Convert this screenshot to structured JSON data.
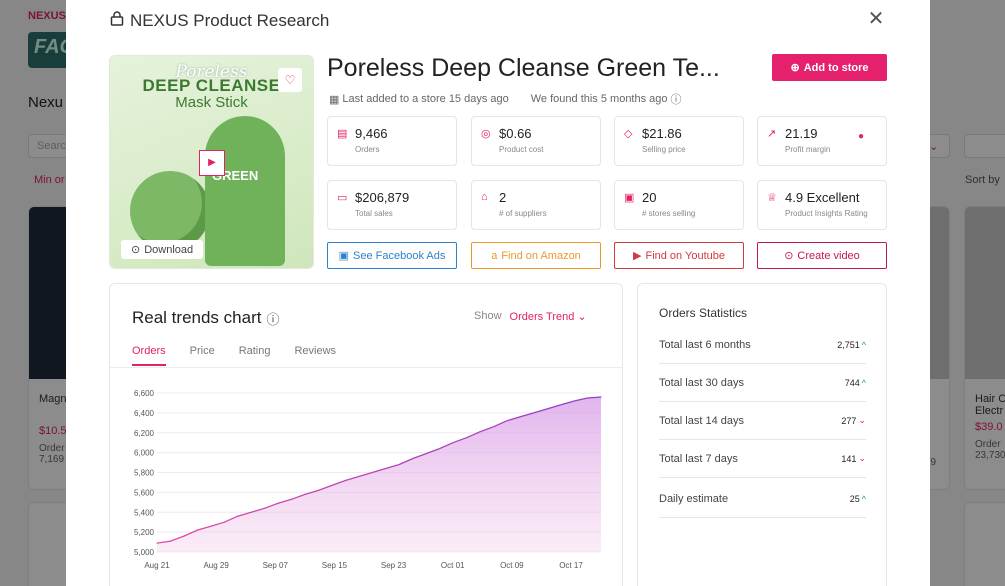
{
  "background": {
    "brand": "NEXUS I",
    "banner": "FAC",
    "heading": "Nexu",
    "search_placeholder": "Searc",
    "filter": "Min or",
    "sort": "Sort by",
    "cards": [
      {
        "title": "Magn",
        "price": "$10.5",
        "orders_label": "Order",
        "orders": "7,169"
      },
      {
        "title": "Hair C Electr",
        "price": "$39.0",
        "orders_label": "Order",
        "orders": "23,730"
      }
    ],
    "card_badge": "On",
    "card_mid_number": "79"
  },
  "modal": {
    "title": "NEXUS Product Research",
    "close_icon": "close-icon"
  },
  "product": {
    "image": {
      "script": "Poreless",
      "title": "DEEP CLEANSE",
      "subtitle": "Mask Stick",
      "label": "GREEN"
    },
    "download_label": "Download",
    "name": "Poreless Deep Cleanse Green Te...",
    "add_to_store": "Add to store",
    "last_added": "Last added to a store 15 days ago",
    "found": "We found this 5 months ago"
  },
  "stats": [
    {
      "value": "9,466",
      "label": "Orders",
      "icon": "file-icon"
    },
    {
      "value": "$0.66",
      "label": "Product cost",
      "icon": "coins-icon"
    },
    {
      "value": "$21.86",
      "label": "Selling price",
      "icon": "tag-icon"
    },
    {
      "value": "21.19",
      "label": "Profit margin",
      "icon": "chart-icon"
    },
    {
      "value": "$206,879",
      "label": "Total sales",
      "icon": "wallet-icon"
    },
    {
      "value": "2",
      "label": "# of suppliers",
      "icon": "supplier-icon"
    },
    {
      "value": "20",
      "label": "# stores selling",
      "icon": "store-icon"
    },
    {
      "value": "4.9 Excellent",
      "label": "Product Insights Rating",
      "icon": "award-icon"
    }
  ],
  "actions": [
    {
      "label": "See Facebook Ads",
      "color": "#2f80c8"
    },
    {
      "label": "Find on Amazon",
      "color": "#e89a2c"
    },
    {
      "label": "Find on Youtube",
      "color": "#d23b3b"
    },
    {
      "label": "Create video",
      "color": "#c2185b"
    }
  ],
  "trends": {
    "title": "Real trends chart",
    "show_label": "Show",
    "show_value": "Orders Trend",
    "tabs": [
      "Orders",
      "Price",
      "Rating",
      "Reviews"
    ],
    "active_tab": 0
  },
  "chart_data": {
    "type": "area",
    "title": "",
    "xlabel": "",
    "ylabel": "",
    "ylim": [
      5000,
      6600
    ],
    "y_ticks": [
      "6,600",
      "6,400",
      "6,200",
      "6,000",
      "5,800",
      "5,600",
      "5,400",
      "5,200",
      "5,000"
    ],
    "x_ticks": [
      "Aug 21",
      "Aug 29",
      "Sep 07",
      "Sep 15",
      "Sep 23",
      "Oct 01",
      "Oct 09",
      "Oct 17"
    ],
    "series": [
      {
        "values": [
          5090,
          5110,
          5160,
          5220,
          5260,
          5300,
          5360,
          5400,
          5440,
          5490,
          5530,
          5580,
          5620,
          5670,
          5720,
          5760,
          5800,
          5840,
          5880,
          5940,
          5990,
          6040,
          6100,
          6150,
          6210,
          6260,
          6320,
          6360,
          6400,
          6440,
          6480,
          6520,
          6550,
          6560
        ]
      }
    ],
    "color": "#b44bd8"
  },
  "orders_stats": {
    "title": "Orders Statistics",
    "rows": [
      {
        "label": "Total last 6 months",
        "value": "2,751",
        "trend": "up"
      },
      {
        "label": "Total last 30 days",
        "value": "744",
        "trend": "up"
      },
      {
        "label": "Total last 14 days",
        "value": "277",
        "trend": "down"
      },
      {
        "label": "Total last 7 days",
        "value": "141",
        "trend": "down"
      },
      {
        "label": "Daily estimate",
        "value": "25",
        "trend": "up"
      }
    ]
  }
}
